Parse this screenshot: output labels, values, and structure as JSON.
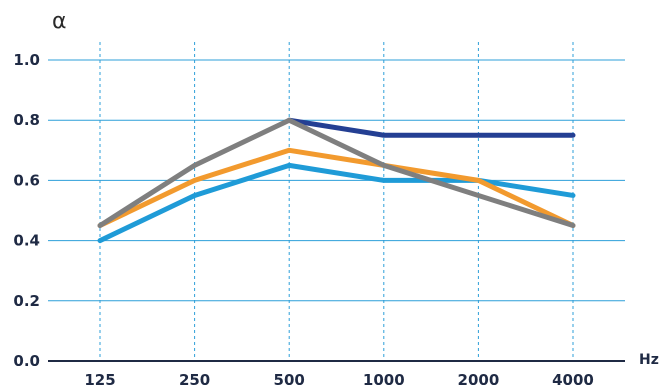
{
  "chart_data": {
    "type": "line",
    "title": "",
    "xlabel": "Hz",
    "ylabel": "α",
    "categories": [
      "125",
      "250",
      "500",
      "1000",
      "2000",
      "4000"
    ],
    "ylim": [
      0,
      1.0
    ],
    "yticks": [
      "0.0",
      "0.2",
      "0.4",
      "0.6",
      "0.8",
      "1.0"
    ],
    "grid": {
      "horizontal": true,
      "vertical": true
    },
    "series": [
      {
        "color": "#1f9bd7",
        "values": [
          0.4,
          0.55,
          0.65,
          0.6,
          0.6,
          0.55
        ]
      },
      {
        "color": "#f29a2e",
        "values": [
          0.45,
          0.6,
          0.7,
          0.65,
          0.6,
          0.45
        ]
      },
      {
        "color": "#243f93",
        "values": [
          null,
          null,
          0.8,
          0.75,
          0.75,
          0.75
        ]
      },
      {
        "color": "#7f7f7f",
        "values": [
          0.45,
          0.65,
          0.8,
          0.65,
          0.55,
          0.45
        ]
      }
    ]
  }
}
